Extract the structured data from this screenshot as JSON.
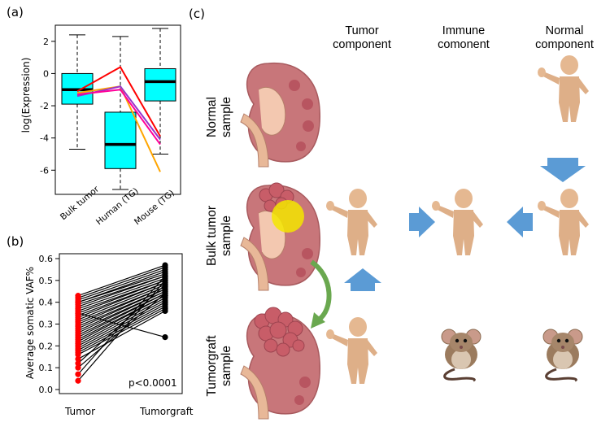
{
  "panel_a": {
    "letter": "(a)",
    "ylabel": "log(Expression)",
    "yticks": [
      "2",
      "0",
      "-2",
      "-4",
      "-6"
    ],
    "categories": [
      "Bulk tumor",
      "Human (TG)",
      "Mouse (TG)"
    ]
  },
  "panel_b": {
    "letter": "(b)",
    "ylabel": "Average somatic VAF%",
    "yticks": [
      "0.6",
      "0.5",
      "0.4",
      "0.3",
      "0.2",
      "0.1",
      "0.0"
    ],
    "categories": [
      "Tumor",
      "Tumorgraft"
    ],
    "pvalue": "p<0.0001"
  },
  "panel_c": {
    "letter": "(c)",
    "col_tumor": [
      "Tumor",
      "component"
    ],
    "col_immune": [
      "Immune",
      "comonent"
    ],
    "col_normal": [
      "Normal",
      "component"
    ],
    "row_normal": [
      "Normal",
      "sample"
    ],
    "row_bulk": [
      "Bulk tumor",
      "sample"
    ],
    "row_graft": [
      "Tumorgraft",
      "sample"
    ]
  },
  "colors": {
    "box_fill": "#00ffff",
    "vaf_tumor": "#ff0000",
    "vaf_graft": "#000000",
    "arrow": "#5b9bd5",
    "curve_arrow": "#6aa84f",
    "tumor_circle": "#f3e600",
    "kidney": "#c8767a"
  },
  "chart_data": [
    {
      "type": "box",
      "ylabel": "log(Expression)",
      "ylim": [
        -7.5,
        3
      ],
      "categories": [
        "Bulk tumor",
        "Human (TG)",
        "Mouse (TG)"
      ],
      "boxes": [
        {
          "min": -4.7,
          "q1": -1.9,
          "median": -1.0,
          "q3": 0.0,
          "max": 2.4
        },
        {
          "min": -7.2,
          "q1": -5.9,
          "median": -4.4,
          "q3": -2.4,
          "max": 2.3
        },
        {
          "min": -5.0,
          "q1": -1.7,
          "median": -0.5,
          "q3": 0.3,
          "max": 2.8
        }
      ],
      "series": [
        {
          "color": "#ff0000",
          "values": [
            -1.1,
            0.4,
            -3.9
          ]
        },
        {
          "color": "#ffa500",
          "values": [
            -1.2,
            -0.8,
            -6.1
          ]
        },
        {
          "color": "#9933cc",
          "values": [
            -1.4,
            -0.8,
            -4.1
          ]
        },
        {
          "color": "#ff0099",
          "values": [
            -1.3,
            -1.0,
            -4.4
          ]
        }
      ]
    },
    {
      "type": "paired-scatter",
      "ylabel": "Average somatic VAF%",
      "ylim": [
        0,
        0.6
      ],
      "categories": [
        "Tumor",
        "Tumorgraft"
      ],
      "pairs": [
        [
          0.43,
          0.57
        ],
        [
          0.42,
          0.56
        ],
        [
          0.41,
          0.55
        ],
        [
          0.4,
          0.54
        ],
        [
          0.4,
          0.53
        ],
        [
          0.39,
          0.52
        ],
        [
          0.38,
          0.52
        ],
        [
          0.37,
          0.51
        ],
        [
          0.36,
          0.5
        ],
        [
          0.35,
          0.5
        ],
        [
          0.34,
          0.49
        ],
        [
          0.33,
          0.49
        ],
        [
          0.32,
          0.48
        ],
        [
          0.31,
          0.47
        ],
        [
          0.3,
          0.47
        ],
        [
          0.29,
          0.46
        ],
        [
          0.28,
          0.46
        ],
        [
          0.27,
          0.45
        ],
        [
          0.26,
          0.45
        ],
        [
          0.25,
          0.44
        ],
        [
          0.24,
          0.44
        ],
        [
          0.23,
          0.43
        ],
        [
          0.22,
          0.43
        ],
        [
          0.21,
          0.42
        ],
        [
          0.2,
          0.41
        ],
        [
          0.19,
          0.4
        ],
        [
          0.18,
          0.39
        ],
        [
          0.17,
          0.38
        ],
        [
          0.16,
          0.37
        ],
        [
          0.14,
          0.36
        ],
        [
          0.12,
          0.48
        ],
        [
          0.1,
          0.44
        ],
        [
          0.07,
          0.52
        ],
        [
          0.04,
          0.5
        ],
        [
          0.35,
          0.24
        ]
      ]
    }
  ]
}
